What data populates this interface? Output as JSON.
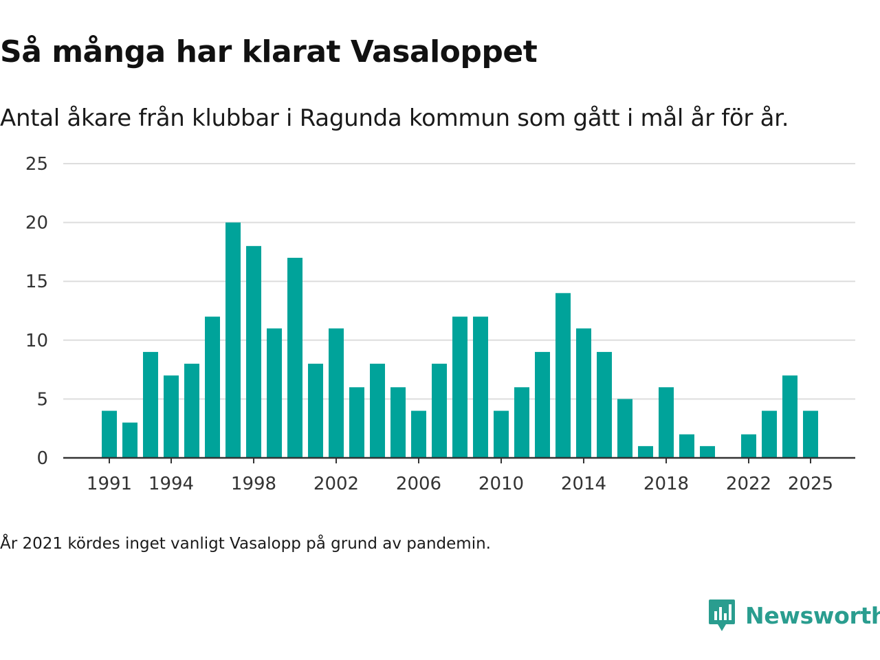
{
  "title": "Så många har klarat Vasaloppet",
  "subtitle": "Antal åkare från klubbar i Ragunda kommun som gått i mål år för år.",
  "footnote": "År 2021 kördes inget vanligt Vasalopp på grund av pandemin.",
  "brand": {
    "name": "Newsworthy",
    "icon": "newsworthy-logo-icon",
    "color": "#2a9d8f"
  },
  "colors": {
    "bar": "#00a39a",
    "grid": "#dddddd",
    "axis": "#333333"
  },
  "chart_data": {
    "type": "bar",
    "title": "Så många har klarat Vasaloppet",
    "xlabel": "",
    "ylabel": "",
    "ylim": [
      0,
      25
    ],
    "yticks": [
      0,
      5,
      10,
      15,
      20,
      25
    ],
    "xticks": [
      "1991",
      "1994",
      "1998",
      "2002",
      "2006",
      "2010",
      "2014",
      "2018",
      "2022",
      "2025"
    ],
    "categories": [
      "1991",
      "1992",
      "1993",
      "1994",
      "1995",
      "1996",
      "1997",
      "1998",
      "1999",
      "2000",
      "2001",
      "2002",
      "2003",
      "2004",
      "2005",
      "2006",
      "2007",
      "2008",
      "2009",
      "2010",
      "2011",
      "2012",
      "2013",
      "2014",
      "2015",
      "2016",
      "2017",
      "2018",
      "2019",
      "2020",
      "2021",
      "2022",
      "2023",
      "2024",
      "2025"
    ],
    "values": [
      4,
      3,
      9,
      7,
      8,
      12,
      20,
      18,
      11,
      17,
      8,
      11,
      6,
      8,
      6,
      4,
      8,
      12,
      12,
      4,
      6,
      9,
      14,
      11,
      9,
      5,
      1,
      6,
      2,
      1,
      null,
      2,
      4,
      7,
      4
    ],
    "grid": true,
    "legend": "none"
  }
}
